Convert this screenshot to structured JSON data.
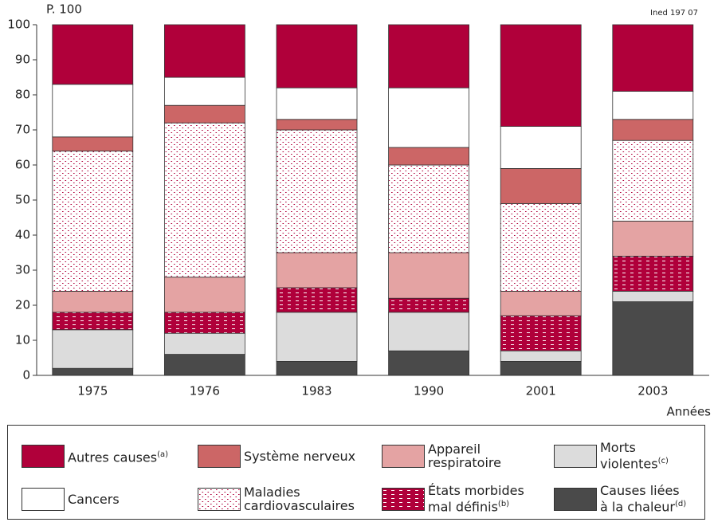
{
  "chart_data": {
    "type": "stacked-bar",
    "y_label": "P. 100",
    "source": "Ined 197 07",
    "x_label": "Années",
    "categories": [
      "1975",
      "1976",
      "1983",
      "1990",
      "2001",
      "2003"
    ],
    "ylim": [
      0,
      100
    ],
    "yticks": [
      0,
      10,
      20,
      30,
      40,
      50,
      60,
      70,
      80,
      90,
      100
    ],
    "series": [
      {
        "name": "Causes liées\nà la chaleur",
        "note": "(d)",
        "color": "#4a4a4a",
        "values": [
          2,
          6,
          4,
          7,
          4,
          21
        ]
      },
      {
        "name": "Morts\nviolentes",
        "note": "(c)",
        "color": "#dcdcdc",
        "values": [
          11,
          6,
          14,
          11,
          3,
          3
        ]
      },
      {
        "name": "États morbides\nmal définis",
        "note": "(b)",
        "color": "#b0003a",
        "pattern": "dashes",
        "values": [
          5,
          6,
          7,
          4,
          10,
          10
        ]
      },
      {
        "name": "Appareil\nrespiratoire",
        "color": "#e4a3a3",
        "values": [
          6,
          10,
          10,
          13,
          7,
          10
        ]
      },
      {
        "name": "Maladies\ncardiovasculaires",
        "color": "#ffffff",
        "pattern": "dots",
        "values": [
          40,
          44,
          35,
          25,
          25,
          23
        ]
      },
      {
        "name": "Système nerveux",
        "color": "#cc6666",
        "values": [
          4,
          5,
          3,
          5,
          10,
          6
        ]
      },
      {
        "name": "Cancers",
        "color": "#ffffff",
        "values": [
          15,
          8,
          9,
          17,
          12,
          8
        ]
      },
      {
        "name": "Autres causes",
        "note": "(a)",
        "color": "#b0003a",
        "values": [
          17,
          15,
          18,
          18,
          29,
          19
        ]
      }
    ]
  }
}
